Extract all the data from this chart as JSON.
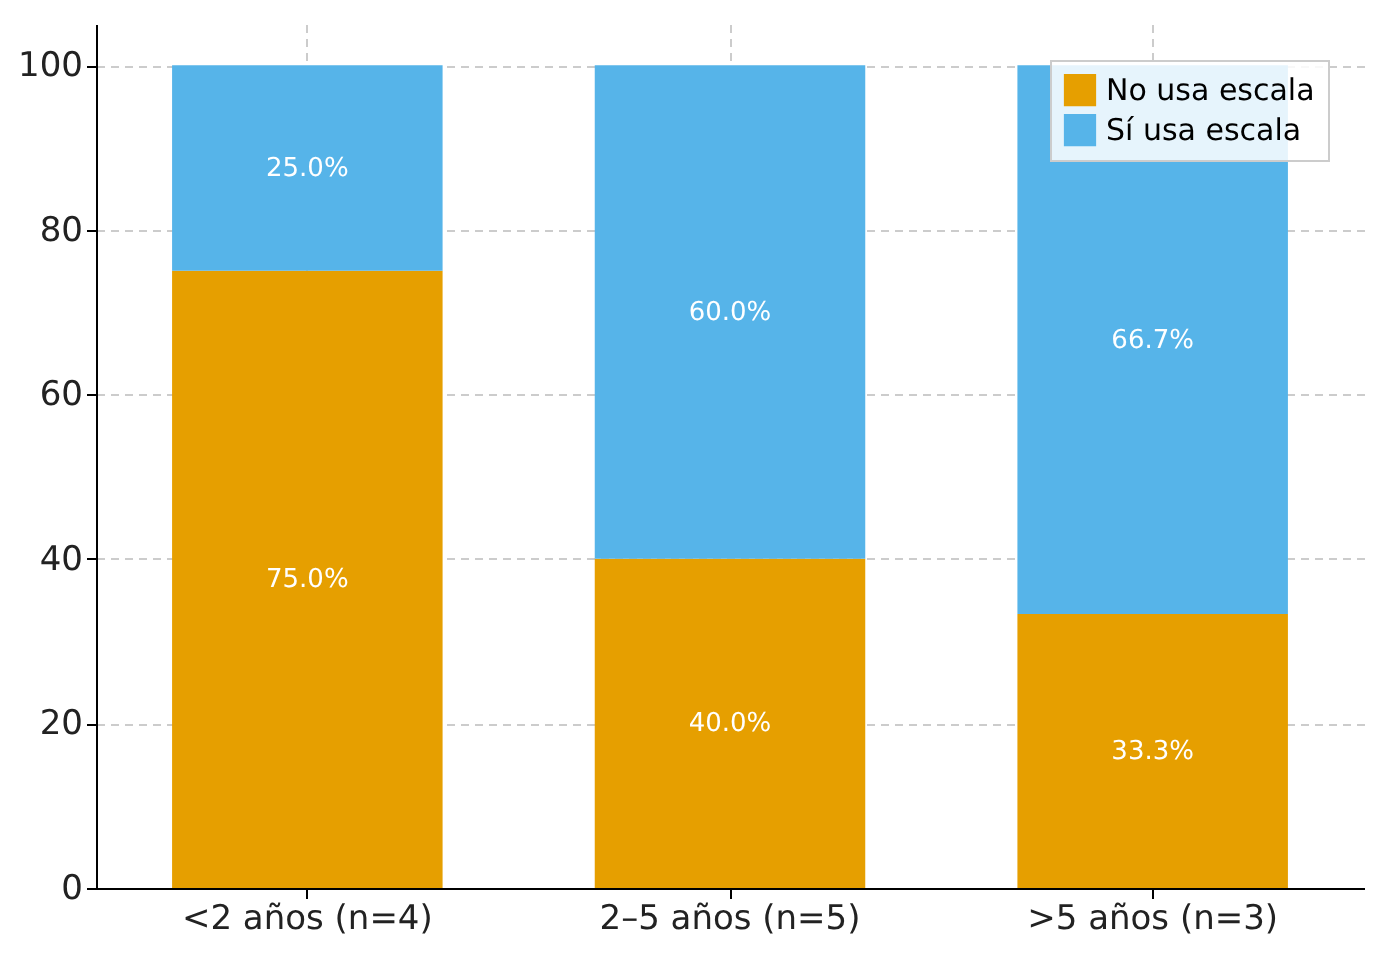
{
  "chart_data": {
    "type": "bar",
    "stacked": true,
    "categories": [
      "<2 años (n=4)",
      "2–5 años (n=5)",
      ">5 años (n=3)"
    ],
    "series": [
      {
        "name": "No usa escala",
        "color": "#e69f00",
        "values": [
          75,
          40,
          33.3
        ],
        "value_labels": [
          "75.0%",
          "40.0%",
          "33.3%"
        ]
      },
      {
        "name": "Sí usa escala",
        "color": "#56b4e9",
        "values": [
          25,
          60,
          66.7
        ],
        "value_labels": [
          "25.0%",
          "60.0%",
          "66.7%"
        ]
      }
    ],
    "ylim": [
      0,
      105
    ],
    "yticks": [
      0,
      20,
      40,
      60,
      80,
      100
    ],
    "grid": true,
    "legend": "top right"
  }
}
